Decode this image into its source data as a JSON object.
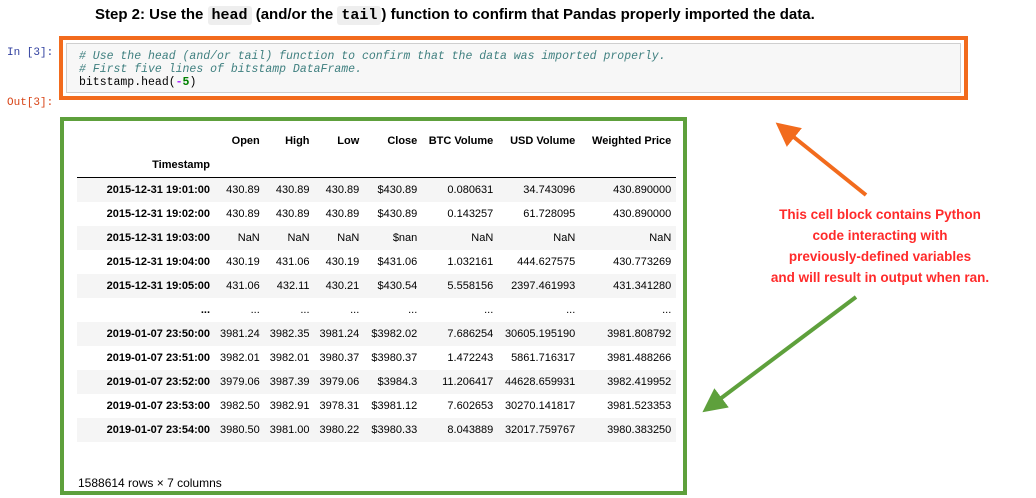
{
  "heading": {
    "prefix": "Step 2: Use the ",
    "code1": "head",
    "middle": " (and/or the ",
    "code2": "tail",
    "suffix": ") function to confirm that Pandas properly imported the data."
  },
  "cell": {
    "in_prompt": "In [3]:",
    "out_prompt": "Out[3]:",
    "code": {
      "comment1": "# Use the head (and/or tail) function to confirm that the data was imported properly.",
      "comment2": "# First five lines of bitstamp DataFrame.",
      "line3_call": "bitstamp.head(",
      "line3_op": "-",
      "line3_num": "5",
      "line3_close": ")"
    }
  },
  "table": {
    "columns": [
      "Open",
      "High",
      "Low",
      "Close",
      "BTC Volume",
      "USD Volume",
      "Weighted Price"
    ],
    "index_name": "Timestamp",
    "rows": [
      [
        "2015-12-31 19:01:00",
        "430.89",
        "430.89",
        "430.89",
        "$430.89",
        "0.080631",
        "34.743096",
        "430.890000"
      ],
      [
        "2015-12-31 19:02:00",
        "430.89",
        "430.89",
        "430.89",
        "$430.89",
        "0.143257",
        "61.728095",
        "430.890000"
      ],
      [
        "2015-12-31 19:03:00",
        "NaN",
        "NaN",
        "NaN",
        "$nan",
        "NaN",
        "NaN",
        "NaN"
      ],
      [
        "2015-12-31 19:04:00",
        "430.19",
        "431.06",
        "430.19",
        "$431.06",
        "1.032161",
        "444.627575",
        "430.773269"
      ],
      [
        "2015-12-31 19:05:00",
        "431.06",
        "432.11",
        "430.21",
        "$430.54",
        "5.558156",
        "2397.461993",
        "431.341280"
      ],
      [
        "...",
        "...",
        "...",
        "...",
        "...",
        "...",
        "...",
        "..."
      ],
      [
        "2019-01-07 23:50:00",
        "3981.24",
        "3982.35",
        "3981.24",
        "$3982.02",
        "7.686254",
        "30605.195190",
        "3981.808792"
      ],
      [
        "2019-01-07 23:51:00",
        "3982.01",
        "3982.01",
        "3980.37",
        "$3980.37",
        "1.472243",
        "5861.716317",
        "3981.488266"
      ],
      [
        "2019-01-07 23:52:00",
        "3979.06",
        "3987.39",
        "3979.06",
        "$3984.3",
        "11.206417",
        "44628.659931",
        "3982.419952"
      ],
      [
        "2019-01-07 23:53:00",
        "3982.50",
        "3982.91",
        "3978.31",
        "$3981.12",
        "7.602653",
        "30270.141817",
        "3981.523353"
      ],
      [
        "2019-01-07 23:54:00",
        "3980.50",
        "3981.00",
        "3980.22",
        "$3980.33",
        "8.043889",
        "32017.759767",
        "3980.383250"
      ]
    ],
    "summary": "1588614 rows × 7 columns"
  },
  "annotation": {
    "lines": [
      "This cell block contains Python",
      "code interacting with",
      "previously-defined variables",
      "and will result in output when ran."
    ],
    "color": "#ff2a2a"
  },
  "colors": {
    "code_border": "#f26b1d",
    "output_border": "#5ea03c"
  }
}
